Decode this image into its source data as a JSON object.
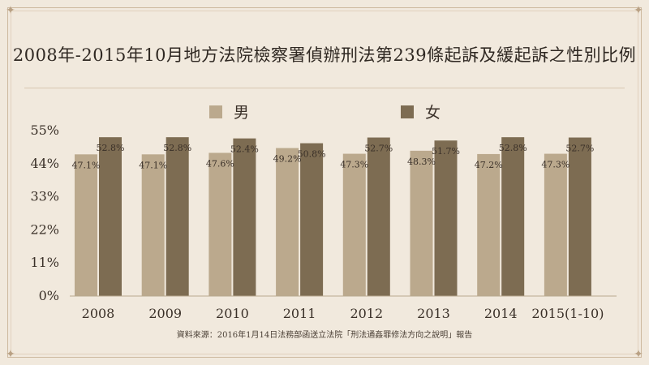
{
  "title": "2008年-2015年10月地方法院檢察署偵辦刑法第239條起訴及緩起訴之性別比例",
  "legend": {
    "male": "男",
    "female": "女"
  },
  "source": "資料來源：2016年1月14日法務部函送立法院「刑法通姦罪修法方向之說明」報告",
  "colors": {
    "male": "#bba98d",
    "female": "#7d6c52",
    "background": "#f1e9dd"
  },
  "chart_data": {
    "type": "bar",
    "categories": [
      "2008",
      "2009",
      "2010",
      "2011",
      "2012",
      "2013",
      "2014",
      "2015(1-10)"
    ],
    "series": [
      {
        "name": "男",
        "values": [
          47.1,
          47.1,
          47.6,
          49.2,
          47.3,
          48.3,
          47.2,
          47.3
        ],
        "labels": [
          "47.1%",
          "47.1%",
          "47.6%",
          "49.2%",
          "47.3%",
          "48.3%",
          "47.2%",
          "47.3%"
        ]
      },
      {
        "name": "女",
        "values": [
          52.8,
          52.8,
          52.4,
          50.8,
          52.7,
          51.7,
          52.8,
          52.7
        ],
        "labels": [
          "52.8%",
          "52.8%",
          "52.4%",
          "50.8%",
          "52.7%",
          "51.7%",
          "52.8%",
          "52.7%"
        ]
      }
    ],
    "yticks": [
      0,
      11,
      22,
      33,
      44,
      55
    ],
    "ytick_labels": [
      "0%",
      "11%",
      "22%",
      "33%",
      "44%",
      "55%"
    ],
    "ylim": [
      0,
      55
    ],
    "grid": false,
    "legend_position": "top"
  }
}
